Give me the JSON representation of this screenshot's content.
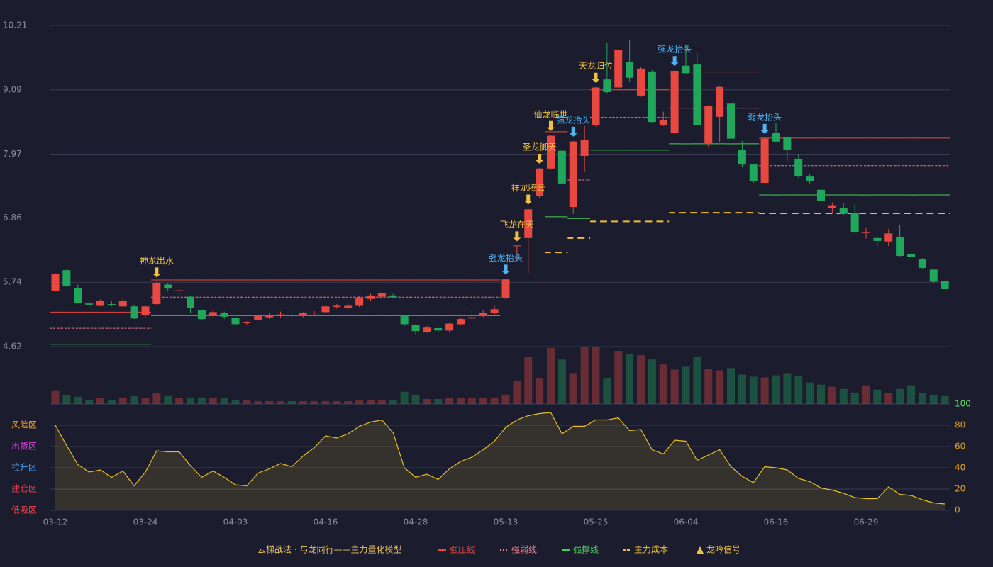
{
  "chart_data": [
    {
      "type": "candlestick",
      "categories": [
        "03-12",
        null,
        null,
        null,
        null,
        null,
        null,
        null,
        "03-24",
        null,
        null,
        null,
        null,
        null,
        null,
        null,
        "04-03",
        null,
        null,
        null,
        null,
        null,
        null,
        null,
        "04-16",
        null,
        null,
        null,
        null,
        null,
        null,
        null,
        "04-28",
        null,
        null,
        null,
        null,
        null,
        null,
        null,
        "05-13",
        null,
        null,
        null,
        null,
        null,
        null,
        null,
        "05-25",
        null,
        null,
        null,
        null,
        null,
        null,
        null,
        "06-04",
        null,
        null,
        null,
        null,
        null,
        null,
        null,
        "06-16",
        null,
        null,
        null,
        null,
        null,
        null,
        null,
        "06-29",
        null,
        null,
        null,
        null,
        null,
        null,
        null
      ],
      "open": [
        5.59,
        5.95,
        5.64,
        5.37,
        5.33,
        5.36,
        5.32,
        5.32,
        5.17,
        5.36,
        5.7,
        5.59,
        5.49,
        5.25,
        5.16,
        5.2,
        5.12,
        5.03,
        5.09,
        5.13,
        5.17,
        5.17,
        5.16,
        5.2,
        5.22,
        5.31,
        5.29,
        5.33,
        5.45,
        5.49,
        5.51,
        5.15,
        4.99,
        4.87,
        4.94,
        4.9,
        5.01,
        5.11,
        5.15,
        5.2,
        5.46,
        6.37,
        6.51,
        7.24,
        7.72,
        8.03,
        7.05,
        7.94,
        8.47,
        9.27,
        9.13,
        9.57,
        8.99,
        9.41,
        8.47,
        8.34,
        9.51,
        9.53,
        8.16,
        8.62,
        8.85,
        8.04,
        7.79,
        7.47,
        8.34,
        8.26,
        7.89,
        7.58,
        7.35,
        7.03,
        7.03,
        6.95,
        6.6,
        6.51,
        6.45,
        6.52,
        6.23,
        6.15,
        5.96,
        5.76
      ],
      "high": [
        5.9,
        5.96,
        5.7,
        5.4,
        5.44,
        5.42,
        5.48,
        5.35,
        5.33,
        5.75,
        5.72,
        5.68,
        5.51,
        5.26,
        5.28,
        5.23,
        5.13,
        5.06,
        5.17,
        5.2,
        5.23,
        5.19,
        5.22,
        5.24,
        5.33,
        5.36,
        5.37,
        5.5,
        5.54,
        5.57,
        5.54,
        5.16,
        5.01,
        4.98,
        4.97,
        5.03,
        5.12,
        5.27,
        5.25,
        5.33,
        5.8,
        6.38,
        7.02,
        7.73,
        8.3,
        8.07,
        8.2,
        8.46,
        9.14,
        9.9,
        9.79,
        9.95,
        9.48,
        9.43,
        8.71,
        9.43,
        9.86,
        9.73,
        8.82,
        9.16,
        9.09,
        8.2,
        7.8,
        8.25,
        8.51,
        8.28,
        7.97,
        7.62,
        7.38,
        7.13,
        7.11,
        7.1,
        6.7,
        6.53,
        6.67,
        6.73,
        6.25,
        6.16,
        5.97,
        5.77
      ],
      "low": [
        5.58,
        5.66,
        5.37,
        5.33,
        5.32,
        5.32,
        5.31,
        5.1,
        5.13,
        5.34,
        5.58,
        5.52,
        5.21,
        5.08,
        5.11,
        5.1,
        5.0,
        4.99,
        5.08,
        5.1,
        5.12,
        5.1,
        5.13,
        5.17,
        5.2,
        5.28,
        5.26,
        5.31,
        5.42,
        5.46,
        5.46,
        4.98,
        4.84,
        4.86,
        4.86,
        4.88,
        4.99,
        5.08,
        5.13,
        5.17,
        5.44,
        6.11,
        5.9,
        7.2,
        7.7,
        7.44,
        6.93,
        7.67,
        8.45,
        9.03,
        9.08,
        9.24,
        8.97,
        8.52,
        8.46,
        8.32,
        9.36,
        8.47,
        8.1,
        8.18,
        8.22,
        7.75,
        7.47,
        7.46,
        8.17,
        7.85,
        7.56,
        7.46,
        7.13,
        6.94,
        6.9,
        6.6,
        6.5,
        6.37,
        6.37,
        6.18,
        6.16,
        5.98,
        5.73,
        5.61
      ],
      "close": [
        5.89,
        5.67,
        5.38,
        5.35,
        5.41,
        5.34,
        5.42,
        5.11,
        5.32,
        5.73,
        5.63,
        5.6,
        5.29,
        5.1,
        5.22,
        5.14,
        5.01,
        5.04,
        5.15,
        5.17,
        5.18,
        5.15,
        5.2,
        5.21,
        5.32,
        5.33,
        5.33,
        5.47,
        5.51,
        5.55,
        5.48,
        5.01,
        4.89,
        4.95,
        4.9,
        5.02,
        5.1,
        5.13,
        5.21,
        5.27,
        5.79,
        6.38,
        7.01,
        7.72,
        8.29,
        7.46,
        8.19,
        8.22,
        9.13,
        9.05,
        9.78,
        9.3,
        9.46,
        8.53,
        8.57,
        9.42,
        9.38,
        8.48,
        8.81,
        9.14,
        8.24,
        7.79,
        7.5,
        8.24,
        8.19,
        8.04,
        7.59,
        7.5,
        7.15,
        7.08,
        6.93,
        6.61,
        6.61,
        6.46,
        6.59,
        6.2,
        6.18,
        5.99,
        5.75,
        5.62
      ],
      "up_color": "#e8483f",
      "down_color": "#1fa85b",
      "ylim": [
        4.62,
        10.21
      ],
      "yticks": [
        10.21,
        9.09,
        7.97,
        6.86,
        5.74,
        4.62
      ],
      "grid": true,
      "levels": [
        {
          "name": "强压线",
          "color": "#e8483f",
          "dash": "solid",
          "values": [
            5.22,
            5.22,
            5.22,
            5.22,
            5.22,
            5.22,
            5.22,
            5.22,
            5.22,
            5.78,
            5.78,
            5.78,
            5.78,
            5.78,
            5.78,
            5.78,
            5.78,
            5.78,
            5.78,
            5.78,
            5.78,
            5.78,
            5.78,
            5.78,
            5.78,
            5.78,
            5.78,
            5.78,
            5.78,
            5.78,
            5.78,
            5.78,
            5.78,
            5.78,
            5.78,
            5.78,
            5.78,
            5.78,
            5.78,
            5.78,
            null,
            null,
            null,
            null,
            8.36,
            8.36,
            null,
            null,
            9.09,
            9.09,
            9.09,
            9.09,
            9.09,
            9.09,
            9.09,
            9.4,
            9.4,
            9.4,
            9.4,
            9.4,
            9.4,
            9.4,
            9.4,
            8.25,
            8.25,
            8.25,
            8.25,
            8.25,
            8.25,
            8.25,
            8.25,
            8.25,
            8.25,
            8.25,
            8.25,
            8.25,
            8.25,
            8.25,
            8.25,
            8.25
          ]
        },
        {
          "name": "强弱线",
          "color": "#f07d8c",
          "dash": "dotted",
          "values": [
            4.94,
            4.94,
            4.94,
            4.94,
            4.94,
            4.94,
            4.94,
            4.94,
            4.94,
            5.48,
            5.48,
            5.48,
            5.48,
            5.48,
            5.48,
            5.48,
            5.48,
            5.48,
            5.48,
            5.48,
            5.48,
            5.48,
            5.48,
            5.48,
            5.48,
            5.48,
            5.48,
            5.48,
            5.48,
            5.48,
            5.48,
            5.48,
            5.48,
            5.48,
            5.48,
            5.48,
            5.48,
            5.48,
            5.48,
            5.48,
            null,
            null,
            null,
            null,
            null,
            null,
            7.52,
            7.52,
            8.61,
            8.61,
            8.61,
            8.61,
            8.61,
            8.61,
            8.61,
            8.77,
            8.77,
            8.77,
            8.77,
            8.77,
            8.77,
            8.77,
            8.77,
            7.77,
            7.77,
            7.77,
            7.77,
            7.77,
            7.77,
            7.77,
            7.77,
            7.77,
            7.77,
            7.77,
            7.77,
            7.77,
            7.77,
            7.77,
            7.77,
            7.77
          ]
        },
        {
          "name": "强撑线",
          "color": "#4ccd5a",
          "dash": "solid",
          "values": [
            4.66,
            4.66,
            4.66,
            4.66,
            4.66,
            4.66,
            4.66,
            4.66,
            4.66,
            5.16,
            5.16,
            5.16,
            5.16,
            5.16,
            5.16,
            5.16,
            5.16,
            5.16,
            5.16,
            5.16,
            5.16,
            5.16,
            5.16,
            5.16,
            5.16,
            5.16,
            5.16,
            5.16,
            5.16,
            5.16,
            5.16,
            5.16,
            5.16,
            5.16,
            5.16,
            5.16,
            5.16,
            5.16,
            5.16,
            5.16,
            null,
            null,
            null,
            null,
            6.88,
            6.88,
            6.85,
            6.85,
            8.04,
            8.04,
            8.04,
            8.04,
            8.04,
            8.04,
            8.04,
            8.15,
            8.15,
            8.15,
            8.15,
            8.15,
            8.15,
            8.15,
            8.15,
            7.26,
            7.26,
            7.26,
            7.26,
            7.26,
            7.26,
            7.26,
            7.26,
            7.26,
            7.26,
            7.26,
            7.26,
            7.26,
            7.26,
            7.26,
            7.26,
            7.26
          ]
        },
        {
          "name": "主力成本",
          "color": "#f0c030",
          "dash": "dashed",
          "values": [
            null,
            null,
            null,
            null,
            null,
            null,
            null,
            null,
            null,
            null,
            null,
            null,
            null,
            null,
            null,
            null,
            null,
            null,
            null,
            null,
            null,
            null,
            null,
            null,
            null,
            null,
            null,
            null,
            null,
            null,
            null,
            null,
            null,
            null,
            null,
            null,
            null,
            null,
            null,
            null,
            null,
            null,
            null,
            null,
            6.26,
            6.26,
            6.51,
            6.51,
            6.8,
            6.8,
            6.8,
            6.8,
            6.8,
            6.8,
            6.8,
            6.95,
            6.95,
            6.95,
            6.95,
            6.95,
            6.95,
            6.95,
            6.95,
            6.94,
            6.94,
            6.94,
            6.94,
            6.94,
            6.94,
            6.94,
            6.94,
            6.94,
            6.94,
            6.94,
            6.94,
            6.94,
            6.94,
            6.94,
            6.94,
            6.94
          ]
        }
      ],
      "signals": [
        {
          "index": 9,
          "label": "神龙出水",
          "color": "#f0c040"
        },
        {
          "index": 40,
          "label": "强龙抬头",
          "color": "#4ab4f5"
        },
        {
          "index": 41,
          "label": "飞龙在天",
          "color": "#f0c040"
        },
        {
          "index": 42,
          "label": "祥龙腾云",
          "color": "#f0c040"
        },
        {
          "index": 43,
          "label": "圣龙御天",
          "color": "#f0c040"
        },
        {
          "index": 44,
          "label": "仙龙临世",
          "color": "#f0c040"
        },
        {
          "index": 46,
          "label": "强龙抬头",
          "color": "#4ab4f5"
        },
        {
          "index": 48,
          "label": "天龙归位",
          "color": "#f0c040"
        },
        {
          "index": 55,
          "label": "强龙抬头",
          "color": "#4ab4f5"
        },
        {
          "index": 63,
          "label": "弱龙抬头",
          "color": "#4ab4f5"
        }
      ],
      "legend_title": "云梯战法 · 与龙同行——主力量化模型",
      "signal_legend": "龙吟信号"
    },
    {
      "type": "bar",
      "values": [
        19,
        12,
        10,
        6,
        8,
        6,
        9,
        11,
        8,
        15,
        11,
        8,
        9,
        9,
        8,
        8,
        5,
        5,
        4,
        4,
        4,
        4,
        4,
        4,
        4,
        4,
        4,
        6,
        5,
        5,
        5,
        17,
        13,
        7,
        7,
        8,
        8,
        8,
        8,
        9,
        13,
        32,
        66,
        36,
        78,
        62,
        43,
        80,
        79,
        36,
        74,
        70,
        68,
        62,
        55,
        48,
        52,
        66,
        49,
        47,
        50,
        41,
        38,
        37,
        40,
        43,
        39,
        30,
        27,
        24,
        21,
        16,
        26,
        20,
        15,
        21,
        26,
        15,
        13,
        11
      ]
    },
    {
      "type": "area",
      "values": [
        80,
        61,
        43,
        36,
        38,
        31,
        37,
        23,
        36,
        56,
        55,
        55,
        42,
        31,
        37,
        31,
        24,
        23,
        35,
        39,
        44,
        41,
        51,
        59,
        70,
        68,
        72,
        79,
        83,
        85,
        73,
        40,
        31,
        34,
        29,
        39,
        46,
        50,
        57,
        65,
        78,
        85,
        89,
        91,
        92,
        72,
        79,
        79,
        85,
        85,
        87,
        75,
        76,
        57,
        53,
        66,
        65,
        47,
        52,
        57,
        41,
        32,
        26,
        41,
        40,
        38,
        30,
        27,
        21,
        19,
        16,
        12,
        11,
        11,
        22,
        15,
        14,
        10,
        7,
        6
      ],
      "color": "#e8c020",
      "ylim": [
        0,
        100
      ],
      "yticks": [
        100,
        80,
        60,
        40,
        20,
        0
      ],
      "zones": [
        {
          "value": 80,
          "label": "风险区",
          "color": "#f0a030"
        },
        {
          "value": 60,
          "label": "出货区",
          "color": "#e040e0"
        },
        {
          "value": 40,
          "label": "拉升区",
          "color": "#4aa0f0"
        },
        {
          "value": 20,
          "label": "建仓区",
          "color": "#f04050"
        },
        {
          "value": 0,
          "label": "低吸区",
          "color": "#f04050"
        }
      ]
    }
  ]
}
